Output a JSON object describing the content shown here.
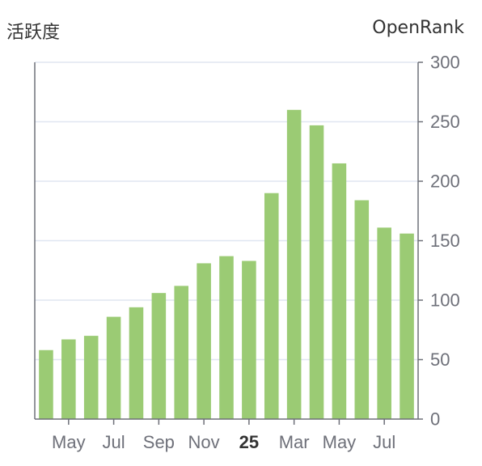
{
  "labels": {
    "left_axis_name": "活跃度",
    "right_axis_name": "OpenRank"
  },
  "colors": {
    "bar": "#9bcb74",
    "axis": "#6e7079",
    "grid": "#e0e6f1"
  },
  "chart_data": {
    "type": "bar",
    "series": [
      {
        "values": [
          58,
          67,
          70,
          86,
          94,
          106,
          112,
          131,
          137,
          133,
          190,
          260,
          247,
          215,
          184,
          161,
          156
        ]
      }
    ],
    "x_tick_labels": [
      {
        "label": "May",
        "bar_index": 1,
        "bold": false
      },
      {
        "label": "Jul",
        "bar_index": 3,
        "bold": false
      },
      {
        "label": "Sep",
        "bar_index": 5,
        "bold": false
      },
      {
        "label": "Nov",
        "bar_index": 7,
        "bold": false
      },
      {
        "label": "25",
        "bar_index": 9,
        "bold": true
      },
      {
        "label": "Mar",
        "bar_index": 11,
        "bold": false
      },
      {
        "label": "May",
        "bar_index": 13,
        "bold": false
      },
      {
        "label": "Jul",
        "bar_index": 15,
        "bold": false
      }
    ],
    "y_ticks": [
      0,
      50,
      100,
      150,
      200,
      250,
      300
    ],
    "ylim": [
      0,
      300
    ],
    "y_axis_side": "right",
    "grid": true
  }
}
